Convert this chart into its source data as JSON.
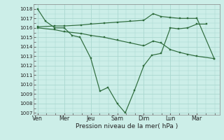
{
  "xlabel": "Pression niveau de la mer( hPa )",
  "bg_color": "#cceee8",
  "grid_color": "#aad8d0",
  "line_color": "#2d6b3c",
  "yticks": [
    1007,
    1008,
    1009,
    1010,
    1011,
    1012,
    1013,
    1014,
    1015,
    1016,
    1017,
    1018
  ],
  "day_labels": [
    "Ven",
    "Mer",
    "Jeu",
    "Sam",
    "Dim",
    "Lun",
    "Mar"
  ],
  "day_positions": [
    0,
    1,
    2,
    3,
    4,
    5,
    6
  ],
  "s1_x": [
    0,
    0.3,
    0.65,
    1.0,
    1.3,
    1.6,
    2.0,
    2.35,
    2.65,
    3.0,
    3.3,
    3.65,
    4.0,
    4.3,
    4.65,
    5.0,
    5.3,
    5.65,
    6.0,
    6.35
  ],
  "s1_y": [
    1018.0,
    1016.7,
    1016.0,
    1016.0,
    1015.2,
    1015.0,
    1012.8,
    1009.3,
    1009.7,
    1008.0,
    1007.0,
    1009.4,
    1012.0,
    1013.1,
    1013.3,
    1016.0,
    1015.9,
    1016.0,
    1016.4,
    1016.4
  ],
  "s2_x": [
    0,
    0.65,
    1.0,
    1.65,
    2.0,
    2.5,
    3.0,
    3.5,
    4.0,
    4.35,
    4.65,
    5.0,
    5.35,
    5.65,
    6.0,
    6.65
  ],
  "s2_y": [
    1016.1,
    1016.2,
    1016.2,
    1016.3,
    1016.4,
    1016.5,
    1016.6,
    1016.7,
    1016.8,
    1017.5,
    1017.2,
    1017.1,
    1017.0,
    1017.0,
    1017.0,
    1012.75
  ],
  "s3_x": [
    0,
    0.65,
    1.0,
    1.65,
    2.0,
    2.5,
    3.0,
    3.5,
    4.0,
    4.35,
    4.65,
    5.0,
    5.35,
    5.65,
    6.0,
    6.65
  ],
  "s3_y": [
    1016.0,
    1015.8,
    1015.6,
    1015.4,
    1015.2,
    1015.0,
    1014.7,
    1014.4,
    1014.1,
    1014.6,
    1014.4,
    1013.7,
    1013.4,
    1013.2,
    1013.0,
    1012.75
  ],
  "xlabel_fontsize": 6.5,
  "ytick_fontsize": 5.2,
  "xtick_fontsize": 5.8
}
